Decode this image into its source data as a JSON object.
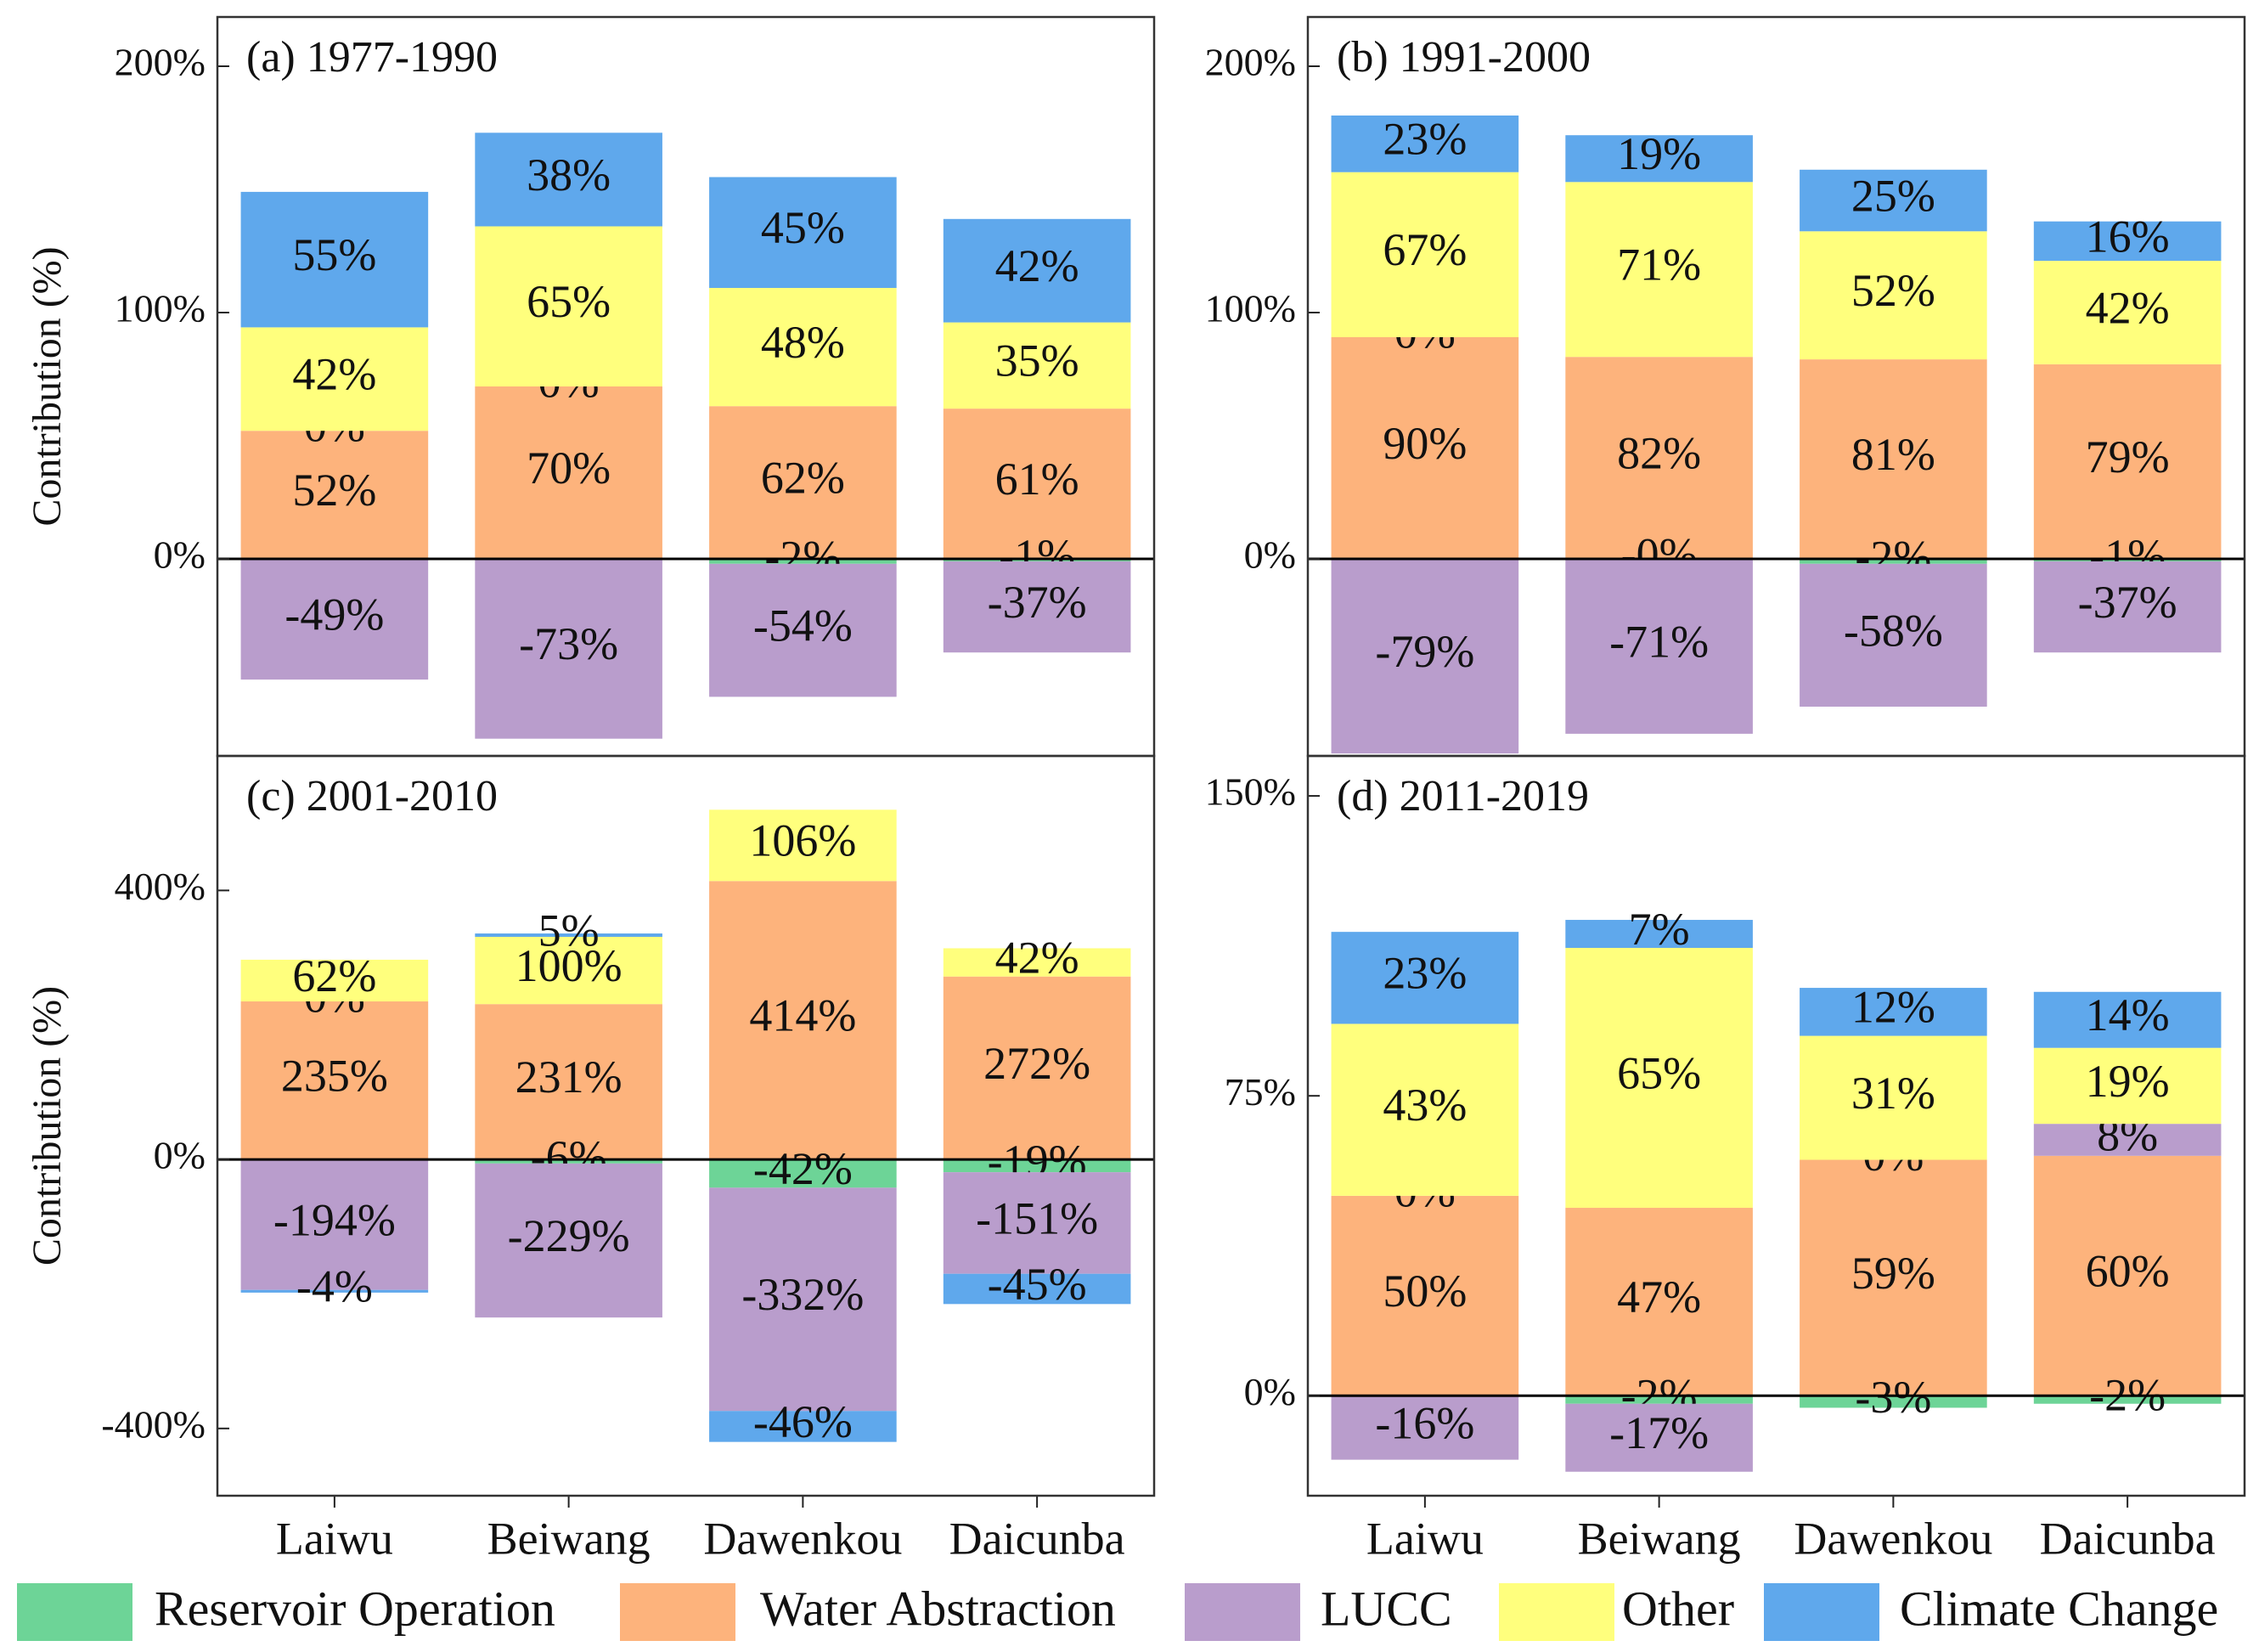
{
  "chart_data": [
    {
      "type": "bar",
      "title": "(a) 1977-1990",
      "ylabel": "Contribution (%)",
      "ylim": [
        -80,
        220
      ],
      "yticks": [
        {
          "value": 0,
          "label": "0%"
        },
        {
          "value": 100,
          "label": "100%"
        },
        {
          "value": 200,
          "label": "200%"
        }
      ],
      "series": [
        {
          "name": "Reservoir Operation",
          "color": "#6dd497",
          "values": [
            0,
            0,
            -2,
            -1
          ],
          "value_labels": [
            "0%",
            "0%",
            "-2%",
            "-1%"
          ]
        },
        {
          "name": "Water Abstraction",
          "color": "#fdb37c",
          "values": [
            52,
            70,
            62,
            61
          ],
          "value_labels": [
            "52%",
            "70%",
            "62%",
            "61%"
          ]
        },
        {
          "name": "LUCC",
          "color": "#b99dcc",
          "values": [
            -49,
            -73,
            -54,
            -37
          ],
          "value_labels": [
            "-49%",
            "-73%",
            "-54%",
            "-37%"
          ]
        },
        {
          "name": "Other",
          "color": "#ffff7d",
          "values": [
            42,
            65,
            48,
            35
          ],
          "value_labels": [
            "42%",
            "65%",
            "48%",
            "35%"
          ]
        },
        {
          "name": "Climate Change",
          "color": "#5fa8ec",
          "values": [
            55,
            38,
            45,
            42
          ],
          "value_labels": [
            "55%",
            "38%",
            "45%",
            "42%"
          ]
        }
      ]
    },
    {
      "type": "bar",
      "title": "(b) 1991-2000",
      "ylim": [
        -80,
        220
      ],
      "yticks": [
        {
          "value": 0,
          "label": "0%"
        },
        {
          "value": 100,
          "label": "100%"
        },
        {
          "value": 200,
          "label": "200%"
        }
      ],
      "series": [
        {
          "values": [
            0,
            0,
            -2,
            -1
          ],
          "value_labels": [
            "0%",
            "-0%",
            "-2%",
            "-1%"
          ]
        },
        {
          "values": [
            90,
            82,
            81,
            79
          ],
          "value_labels": [
            "90%",
            "82%",
            "81%",
            "79%"
          ]
        },
        {
          "values": [
            -79,
            -71,
            -58,
            -37
          ],
          "value_labels": [
            "-79%",
            "-71%",
            "-58%",
            "-37%"
          ]
        },
        {
          "values": [
            67,
            71,
            52,
            42
          ],
          "value_labels": [
            "67%",
            "71%",
            "52%",
            "42%"
          ]
        },
        {
          "values": [
            23,
            19,
            25,
            16
          ],
          "value_labels": [
            "23%",
            "19%",
            "25%",
            "16%"
          ]
        }
      ]
    },
    {
      "type": "bar",
      "title": "(c) 2001-2010",
      "ylabel": "Contribution (%)",
      "categories": [
        "Laiwu",
        "Beiwang",
        "Dawenkou",
        "Daicunba"
      ],
      "ylim": [
        -500,
        600
      ],
      "yticks": [
        {
          "value": -400,
          "label": "-400%"
        },
        {
          "value": 0,
          "label": "0%"
        },
        {
          "value": 400,
          "label": "400%"
        }
      ],
      "series": [
        {
          "values": [
            0,
            -6,
            -42,
            -19
          ],
          "value_labels": [
            "0%",
            "-6%",
            "-42%",
            "-19%"
          ]
        },
        {
          "values": [
            235,
            231,
            414,
            272
          ],
          "value_labels": [
            "235%",
            "231%",
            "414%",
            "272%"
          ]
        },
        {
          "values": [
            -194,
            -229,
            -332,
            -151
          ],
          "value_labels": [
            "-194%",
            "-229%",
            "-332%",
            "-151%"
          ]
        },
        {
          "values": [
            62,
            100,
            106,
            42
          ],
          "value_labels": [
            "62%",
            "100%",
            "106%",
            "42%"
          ]
        },
        {
          "values": [
            -4,
            5,
            -46,
            -45
          ],
          "value_labels": [
            "-4%",
            "5%",
            "-46%",
            "-45%"
          ]
        }
      ]
    },
    {
      "type": "bar",
      "title": "(d) 2011-2019",
      "categories": [
        "Laiwu",
        "Beiwang",
        "Dawenkou",
        "Daicunba"
      ],
      "ylim": [
        -25,
        160
      ],
      "yticks": [
        {
          "value": 0,
          "label": "0%"
        },
        {
          "value": 75,
          "label": "75%"
        },
        {
          "value": 150,
          "label": "150%"
        }
      ],
      "series": [
        {
          "values": [
            0,
            -2,
            -3,
            -2
          ],
          "value_labels": [
            "0%",
            "-2%",
            "-3%",
            "-2%"
          ]
        },
        {
          "values": [
            50,
            47,
            59,
            60
          ],
          "value_labels": [
            "50%",
            "47%",
            "59%",
            "60%"
          ]
        },
        {
          "values": [
            -16,
            -17,
            0,
            8
          ],
          "value_labels": [
            "-16%",
            "-17%",
            "0%",
            "8%"
          ]
        },
        {
          "values": [
            43,
            65,
            31,
            19
          ],
          "value_labels": [
            "43%",
            "65%",
            "31%",
            "19%"
          ]
        },
        {
          "values": [
            23,
            7,
            12,
            14
          ],
          "value_labels": [
            "23%",
            "7%",
            "12%",
            "14%"
          ]
        }
      ]
    }
  ]
}
